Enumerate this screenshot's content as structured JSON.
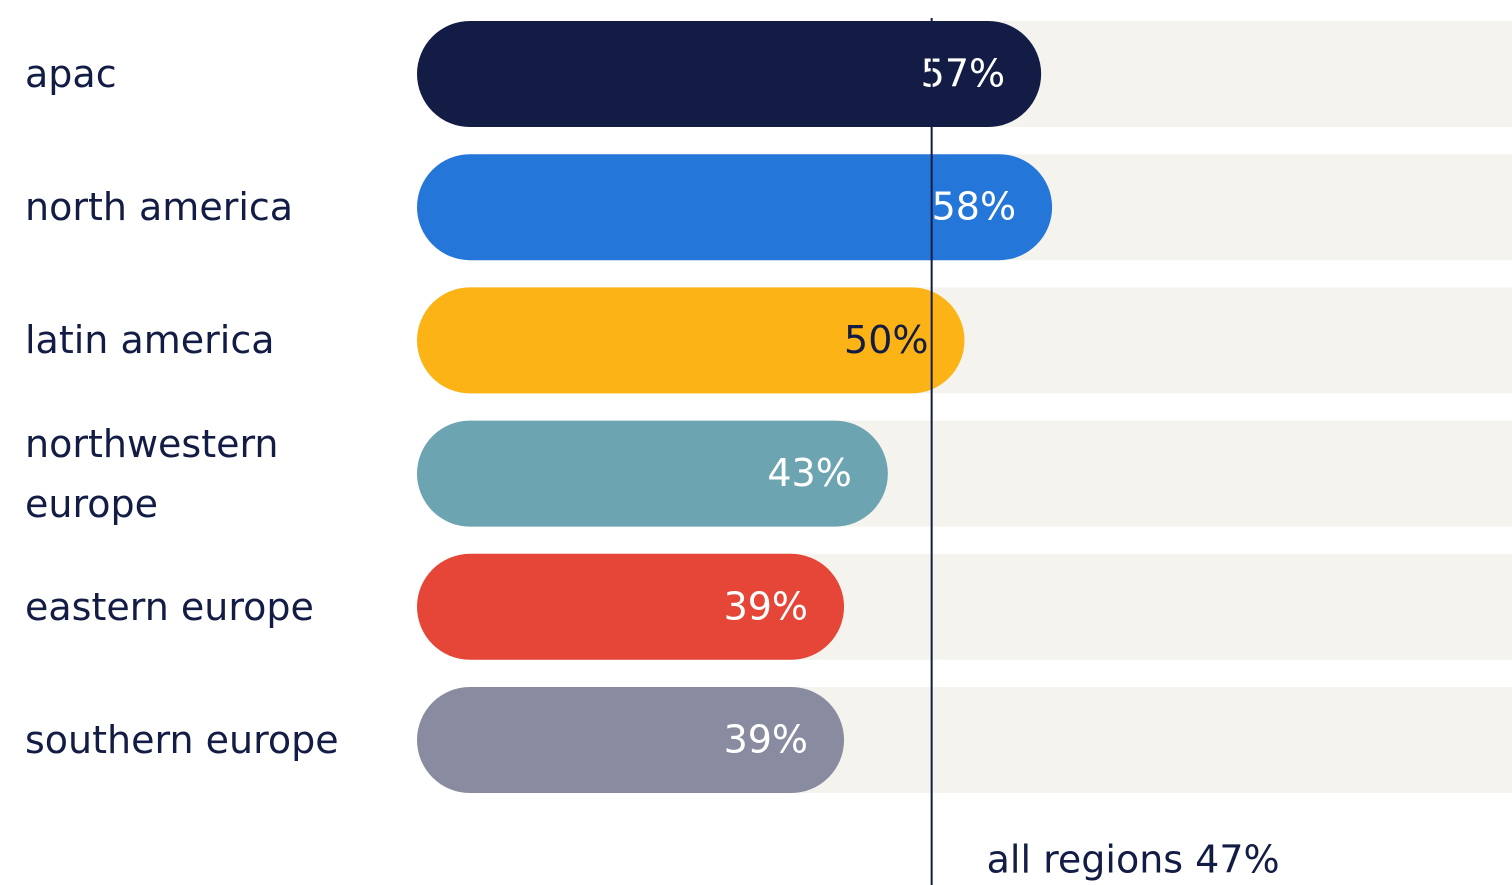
{
  "chart_data": {
    "type": "bar",
    "orientation": "horizontal",
    "categories": [
      "apac",
      "north america",
      "latin america",
      "northwestern europe",
      "eastern europe",
      "southern europe"
    ],
    "values": [
      57,
      58,
      50,
      43,
      39,
      39
    ],
    "value_labels": [
      "57%",
      "58%",
      "50%",
      "43%",
      "39%",
      "39%"
    ],
    "colors": [
      "#131c45",
      "#2476d9",
      "#fbb315",
      "#6ca4b1",
      "#e64637",
      "#898ca0"
    ],
    "label_colors": [
      "#ffffff",
      "#ffffff",
      "#131c45",
      "#ffffff",
      "#ffffff",
      "#ffffff"
    ],
    "track_color": "#f5f3ee",
    "xlim": [
      0,
      100
    ],
    "reference": {
      "value": 47,
      "label": "all regions 47%"
    }
  }
}
